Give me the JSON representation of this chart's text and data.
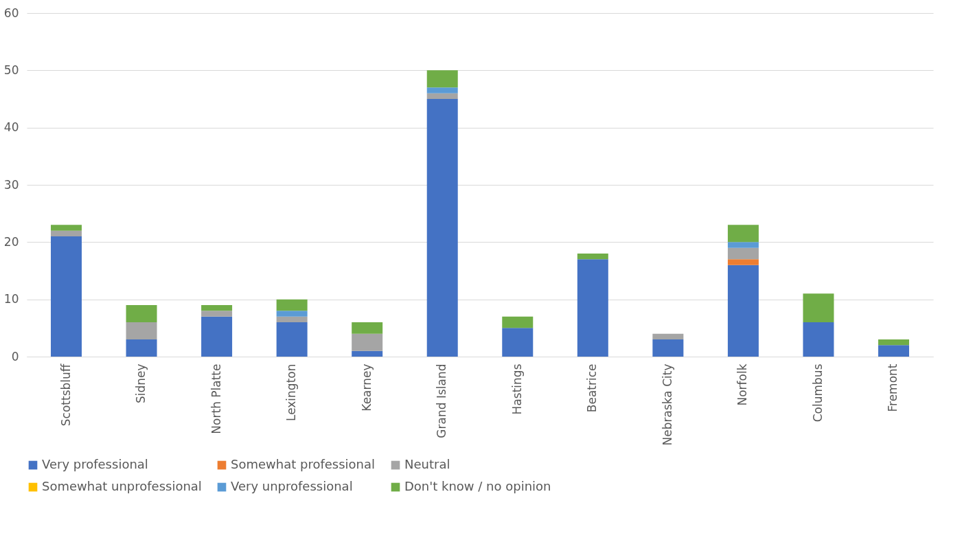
{
  "chart_data": {
    "type": "bar",
    "stacked": true,
    "categories": [
      "Scottsbluff",
      "Sidney",
      "North Platte",
      "Lexington",
      "Kearney",
      "Grand Island",
      "Hastings",
      "Beatrice",
      "Nebraska City",
      "Norfolk",
      "Columbus",
      "Fremont"
    ],
    "series": [
      {
        "name": "Very professional",
        "color": "#4472c4",
        "values": [
          21,
          3,
          7,
          6,
          1,
          45,
          5,
          17,
          3,
          16,
          6,
          2
        ]
      },
      {
        "name": "Somewhat professional",
        "color": "#ed7d31",
        "values": [
          0,
          0,
          0,
          0,
          0,
          0,
          0,
          0,
          0,
          1,
          0,
          0
        ]
      },
      {
        "name": "Neutral",
        "color": "#a5a5a5",
        "values": [
          1,
          3,
          1,
          1,
          3,
          1,
          0,
          0,
          1,
          2,
          0,
          0
        ]
      },
      {
        "name": "Somewhat unprofessional",
        "color": "#ffc000",
        "values": [
          0,
          0,
          0,
          0,
          0,
          0,
          0,
          0,
          0,
          0,
          0,
          0
        ]
      },
      {
        "name": "Very unprofessional",
        "color": "#5b9bd5",
        "values": [
          0,
          0,
          0,
          1,
          0,
          1,
          0,
          0,
          0,
          1,
          0,
          0
        ]
      },
      {
        "name": "Don't know / no opinion",
        "color": "#70ad47",
        "values": [
          1,
          3,
          1,
          2,
          2,
          3,
          2,
          1,
          0,
          3,
          5,
          1
        ]
      }
    ],
    "ylim": [
      0,
      60
    ],
    "yticks": [
      0,
      10,
      20,
      30,
      40,
      50,
      60
    ],
    "grid": "y",
    "legend": "bottom"
  }
}
